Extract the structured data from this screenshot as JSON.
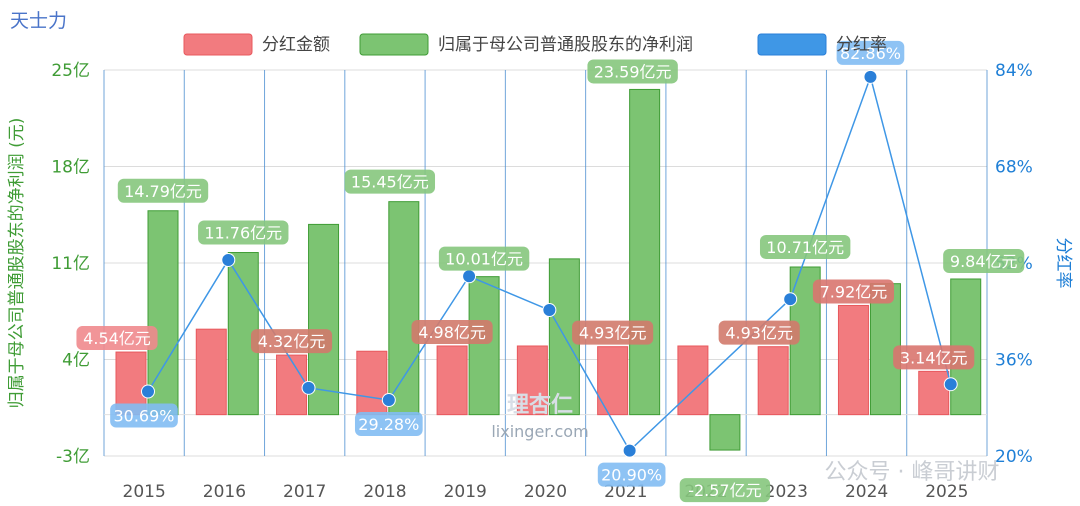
{
  "company": "天士力",
  "chart_data": {
    "type": "bar+line",
    "categories": [
      "2015",
      "2016",
      "2017",
      "2018",
      "2019",
      "2020",
      "2021",
      "2022",
      "2023",
      "2024",
      "2025"
    ],
    "series": [
      {
        "name": "分红金额",
        "type": "bar",
        "axis": "left",
        "color": "#f27b7f",
        "values": [
          4.54,
          6.2,
          4.32,
          4.6,
          4.98,
          4.98,
          4.93,
          4.98,
          4.93,
          7.92,
          3.14
        ],
        "labels": [
          "4.54亿元",
          "",
          "4.32亿元",
          "",
          "4.98亿元",
          "",
          "4.93亿元",
          "",
          "4.93亿元",
          "7.92亿元",
          "3.14亿元"
        ]
      },
      {
        "name": "归属于母公司普通股股东的净利润",
        "type": "bar",
        "axis": "left",
        "color": "#7cc472",
        "values": [
          14.79,
          11.76,
          13.8,
          15.45,
          10.01,
          11.3,
          23.59,
          -2.57,
          10.71,
          9.5,
          9.84
        ],
        "labels": [
          "14.79亿元",
          "11.76亿元",
          "",
          "15.45亿元",
          "10.01亿元",
          "",
          "23.59亿元",
          "-2.57亿元",
          "10.71亿元",
          "",
          "9.84亿元"
        ]
      },
      {
        "name": "分红率",
        "type": "line",
        "axis": "right",
        "color": "#3f97e6",
        "values": [
          30.69,
          52.5,
          31.3,
          29.28,
          49.8,
          44.2,
          20.9,
          null,
          46.0,
          82.86,
          31.9
        ],
        "labels": [
          "30.69%",
          "",
          "",
          "29.28%",
          "",
          "",
          "20.90%",
          "",
          "",
          "82.86%",
          ""
        ]
      }
    ],
    "y_left": {
      "label": "归属于母公司普通股股东的净利润 (元)",
      "ticks": [
        "-3亿",
        "4亿",
        "11亿",
        "18亿",
        "25亿"
      ],
      "range": [
        -3,
        25
      ]
    },
    "y_right": {
      "label": "分红率",
      "ticks": [
        "20%",
        "36%",
        "52%",
        "68%",
        "84%"
      ],
      "range": [
        20,
        84
      ]
    },
    "legend_position": "top"
  },
  "watermark": {
    "logo": "理杏仁",
    "site": "lixinger.com",
    "publisher": "公众号 · 峰哥讲财"
  }
}
